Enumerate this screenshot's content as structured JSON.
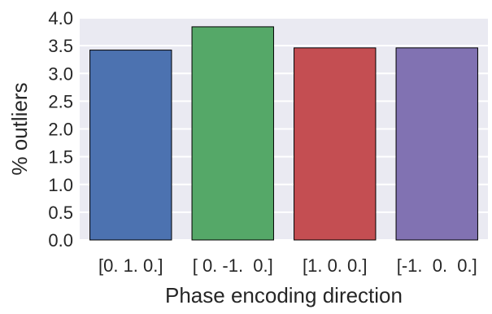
{
  "chart_data": {
    "type": "bar",
    "categories": [
      "[0. 1. 0.]",
      "[ 0. -1.  0.]",
      "[1. 0. 0.]",
      "[-1.  0.  0.]"
    ],
    "values": [
      3.42,
      3.84,
      3.46,
      3.46
    ],
    "colors": [
      "#4c72b0",
      "#55a868",
      "#c44e52",
      "#8172b2"
    ],
    "xlabel": "Phase encoding direction",
    "ylabel": "% outliers",
    "ylim": [
      0,
      4.0
    ],
    "yticks": [
      "0.0",
      "0.5",
      "1.0",
      "1.5",
      "2.0",
      "2.5",
      "3.0",
      "3.5",
      "4.0"
    ],
    "background": "#eaeaf2",
    "grid": true,
    "grid_color": "#ffffff",
    "bar_edge_color": "#000000"
  }
}
